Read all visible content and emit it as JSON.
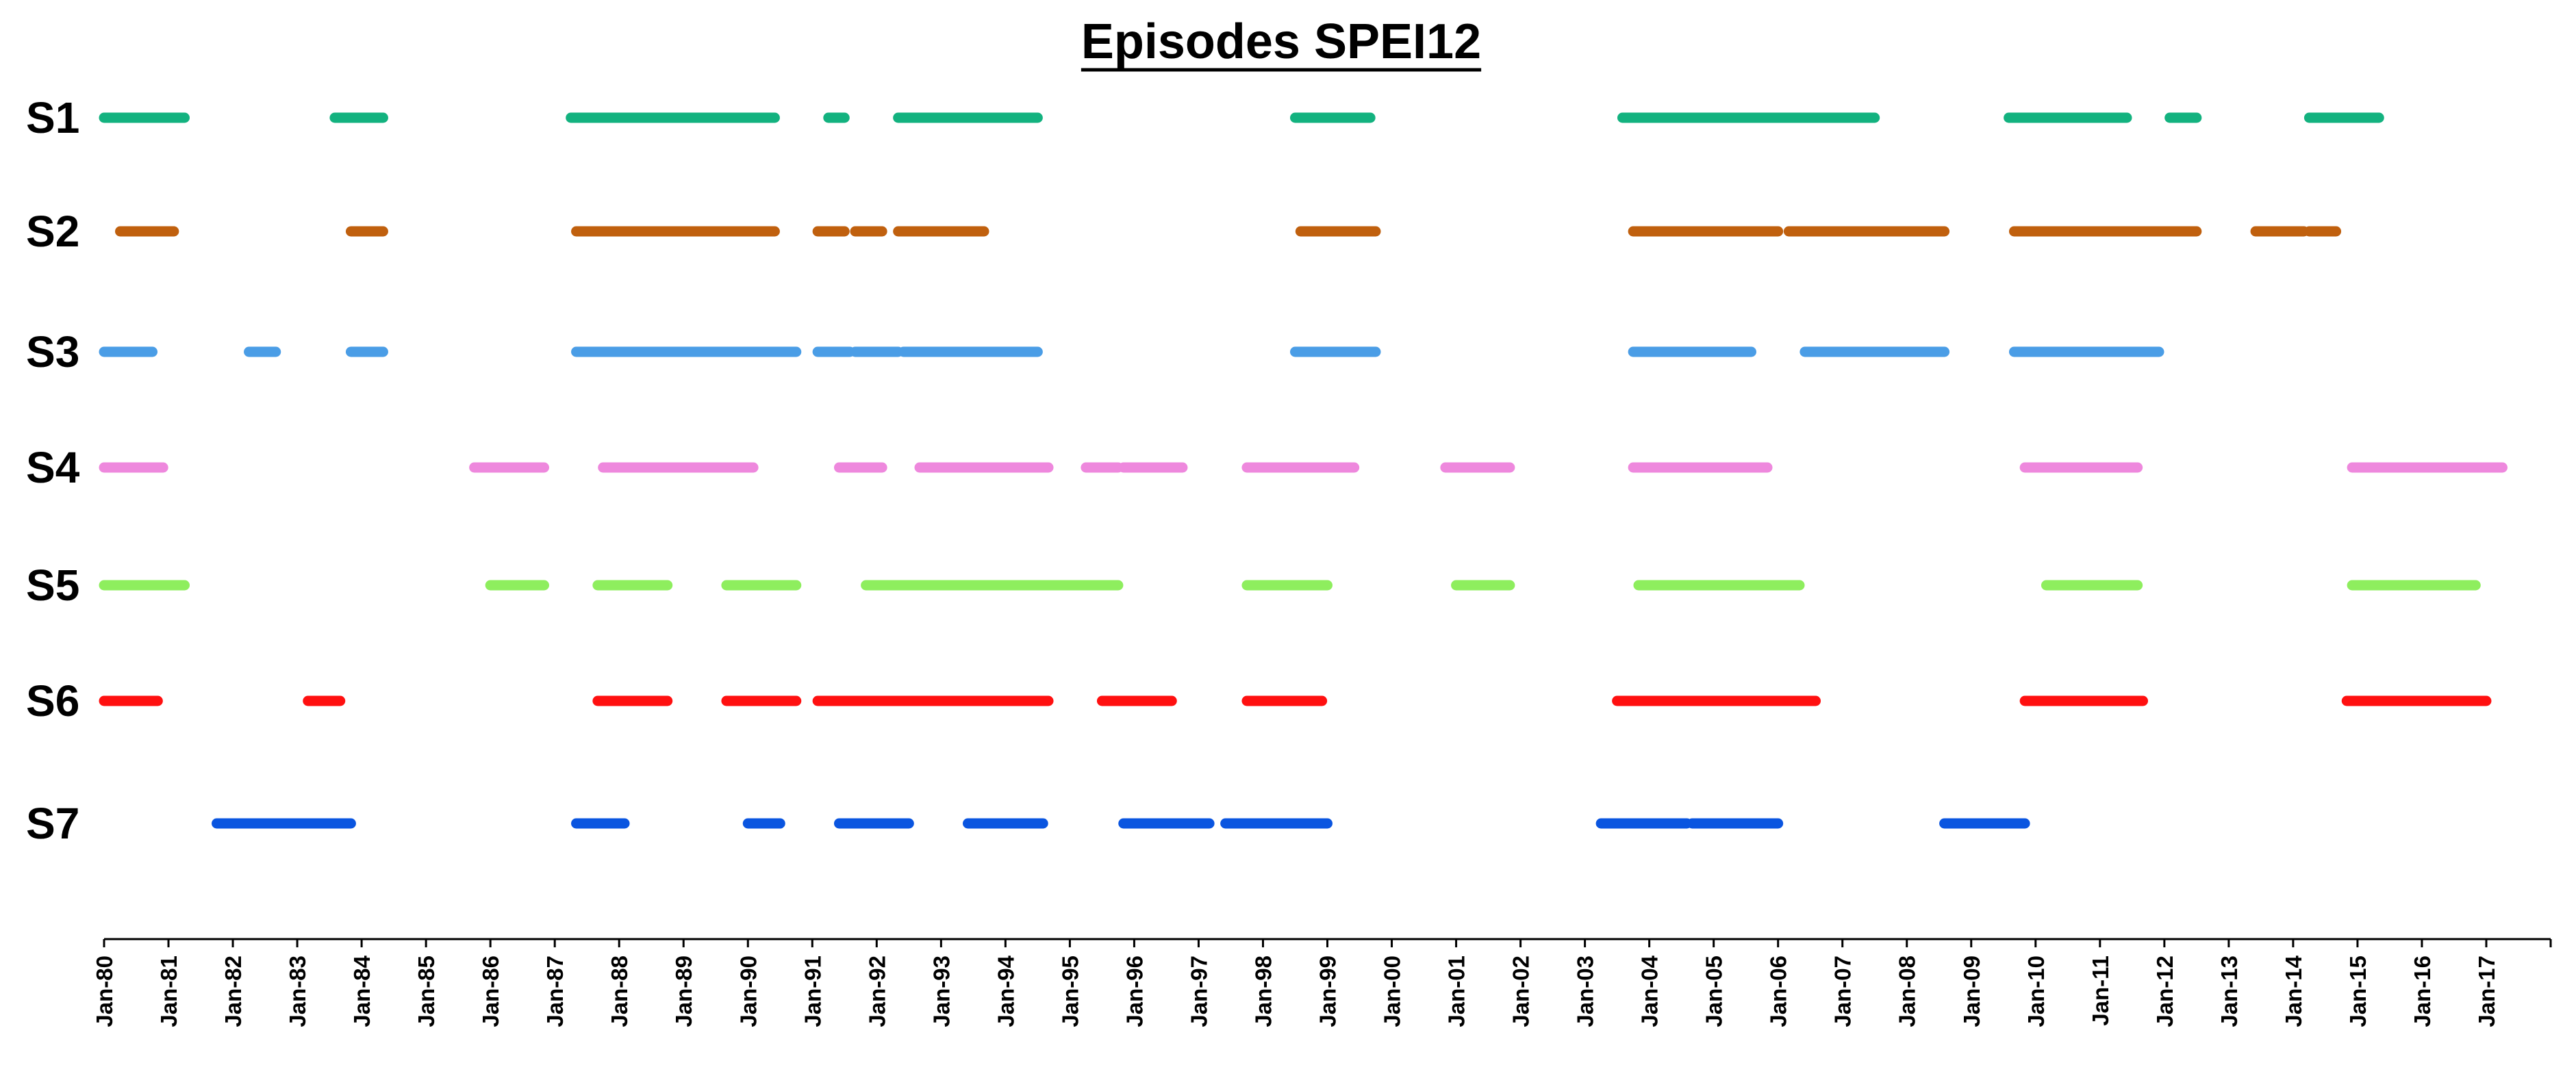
{
  "chart_data": {
    "type": "timeline",
    "title": "Episodes SPEI12",
    "xlabel": "",
    "ylabel": "",
    "x_axis": {
      "range": [
        "1980-01",
        "2018-01"
      ],
      "tick_labels": [
        "Jan-80",
        "Jan-81",
        "Jan-82",
        "Jan-83",
        "Jan-84",
        "Jan-85",
        "Jan-86",
        "Jan-87",
        "Jan-88",
        "Jan-89",
        "Jan-90",
        "Jan-91",
        "Jan-92",
        "Jan-93",
        "Jan-94",
        "Jan-95",
        "Jan-96",
        "Jan-97",
        "Jan-98",
        "Jan-99",
        "Jan-00",
        "Jan-01",
        "Jan-02",
        "Jan-03",
        "Jan-04",
        "Jan-05",
        "Jan-06",
        "Jan-07",
        "Jan-08",
        "Jan-09",
        "Jan-10",
        "Jan-11",
        "Jan-12",
        "Jan-13",
        "Jan-14",
        "Jan-15",
        "Jan-16",
        "Jan-17"
      ]
    },
    "grid": false,
    "legend": "none",
    "series": [
      {
        "name": "S1",
        "color": "#13b27f",
        "episodes": [
          [
            "1980-01",
            "1981-04"
          ],
          [
            "1983-08",
            "1984-05"
          ],
          [
            "1987-04",
            "1990-06"
          ],
          [
            "1991-04",
            "1991-07"
          ],
          [
            "1992-05",
            "1994-07"
          ],
          [
            "1998-07",
            "1999-09"
          ],
          [
            "2003-08",
            "2007-07"
          ],
          [
            "2009-08",
            "2011-06"
          ],
          [
            "2012-02",
            "2012-07"
          ],
          [
            "2014-04",
            "2015-05"
          ]
        ]
      },
      {
        "name": "S2",
        "color": "#c0600e",
        "episodes": [
          [
            "1980-04",
            "1981-02"
          ],
          [
            "1983-11",
            "1984-05"
          ],
          [
            "1987-05",
            "1990-06"
          ],
          [
            "1991-02",
            "1991-07"
          ],
          [
            "1991-09",
            "1992-02"
          ],
          [
            "1992-05",
            "1993-09"
          ],
          [
            "1998-08",
            "1999-10"
          ],
          [
            "2003-10",
            "2006-01"
          ],
          [
            "2006-03",
            "2008-08"
          ],
          [
            "2009-09",
            "2012-07"
          ],
          [
            "2013-06",
            "2014-03"
          ],
          [
            "2014-04",
            "2014-09"
          ]
        ]
      },
      {
        "name": "S3",
        "color": "#4a9de6",
        "episodes": [
          [
            "1980-01",
            "1980-10"
          ],
          [
            "1982-04",
            "1982-09"
          ],
          [
            "1983-11",
            "1984-05"
          ],
          [
            "1987-05",
            "1990-10"
          ],
          [
            "1991-02",
            "1991-08"
          ],
          [
            "1991-09",
            "1992-05"
          ],
          [
            "1992-06",
            "1994-07"
          ],
          [
            "1998-07",
            "1999-10"
          ],
          [
            "2003-10",
            "2005-08"
          ],
          [
            "2006-06",
            "2008-08"
          ],
          [
            "2009-09",
            "2011-12"
          ]
        ]
      },
      {
        "name": "S4",
        "color": "#ee88dd",
        "episodes": [
          [
            "1980-01",
            "1980-12"
          ],
          [
            "1985-10",
            "1986-11"
          ],
          [
            "1987-10",
            "1990-02"
          ],
          [
            "1991-06",
            "1992-02"
          ],
          [
            "1992-09",
            "1994-09"
          ],
          [
            "1995-04",
            "1995-10"
          ],
          [
            "1995-11",
            "1996-10"
          ],
          [
            "1997-10",
            "1999-06"
          ],
          [
            "2000-11",
            "2001-11"
          ],
          [
            "2003-10",
            "2005-11"
          ],
          [
            "2009-11",
            "2011-08"
          ],
          [
            "2014-12",
            "2017-04"
          ]
        ]
      },
      {
        "name": "S5",
        "color": "#8eee5e",
        "episodes": [
          [
            "1980-01",
            "1981-04"
          ],
          [
            "1986-01",
            "1986-11"
          ],
          [
            "1987-09",
            "1988-10"
          ],
          [
            "1989-09",
            "1990-10"
          ],
          [
            "1991-11",
            "1995-01"
          ],
          [
            "1995-01",
            "1995-10"
          ],
          [
            "1997-10",
            "1999-01"
          ],
          [
            "2001-01",
            "2001-11"
          ],
          [
            "2003-11",
            "2006-05"
          ],
          [
            "2010-03",
            "2011-08"
          ],
          [
            "2014-12",
            "2016-11"
          ]
        ]
      },
      {
        "name": "S6",
        "color": "#ff1010",
        "episodes": [
          [
            "1980-01",
            "1980-11"
          ],
          [
            "1983-03",
            "1983-09"
          ],
          [
            "1987-09",
            "1988-10"
          ],
          [
            "1989-09",
            "1990-10"
          ],
          [
            "1991-02",
            "1994-09"
          ],
          [
            "1995-07",
            "1996-08"
          ],
          [
            "1997-10",
            "1998-12"
          ],
          [
            "2003-07",
            "2006-08"
          ],
          [
            "2009-11",
            "2011-09"
          ],
          [
            "2014-11",
            "2017-01"
          ]
        ]
      },
      {
        "name": "S7",
        "color": "#0a55e0",
        "episodes": [
          [
            "1981-10",
            "1983-11"
          ],
          [
            "1987-05",
            "1988-02"
          ],
          [
            "1990-01",
            "1990-07"
          ],
          [
            "1991-06",
            "1992-07"
          ],
          [
            "1993-06",
            "1994-08"
          ],
          [
            "1995-11",
            "1997-03"
          ],
          [
            "1997-06",
            "1999-01"
          ],
          [
            "2003-04",
            "2004-08"
          ],
          [
            "2004-09",
            "2006-01"
          ],
          [
            "2008-08",
            "2009-11"
          ]
        ]
      }
    ]
  }
}
